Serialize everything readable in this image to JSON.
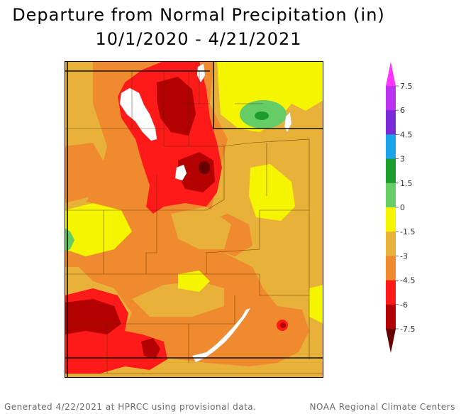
{
  "title": {
    "line1": "Departure from Normal Precipitation (in)",
    "line2": "10/1/2020 - 4/21/2021"
  },
  "legend": {
    "ticks": [
      "7.5",
      "6",
      "4.5",
      "3",
      "1.5",
      "0",
      "-1.5",
      "-3",
      "-4.5",
      "-6",
      "-7.5"
    ],
    "colors": [
      "#ff33ff",
      "#bb33ee",
      "#7a2ad6",
      "#1aa3e8",
      "#1c9c2c",
      "#66cc66",
      "#f5f500",
      "#e8b13a",
      "#f08a2e",
      "#ff1a1a",
      "#b30000",
      "#660000"
    ],
    "color_labels": [
      "pink",
      "violet",
      "purple",
      "blue",
      "dark-green",
      "light-green",
      "yellow",
      "gold",
      "orange",
      "red",
      "dark-red",
      "maroon"
    ]
  },
  "footer": {
    "left": "Generated 4/22/2021 at HPRCC using provisional data.",
    "right": "NOAA Regional Climate Centers"
  }
}
